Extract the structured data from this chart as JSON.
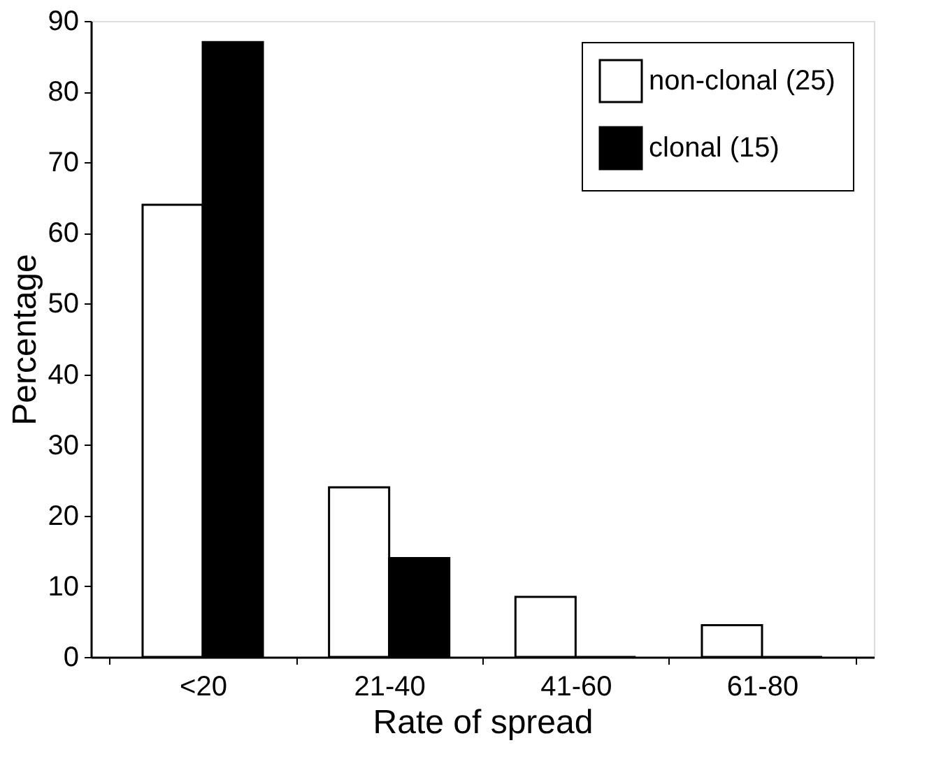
{
  "chart_data": {
    "type": "bar",
    "xlabel": "Rate of spread",
    "ylabel": "Percentage",
    "categories": [
      "<20",
      "21-40",
      "41-60",
      "61-80"
    ],
    "series": [
      {
        "name": "non-clonal (25)",
        "color": "#ffffff",
        "values": [
          64,
          24,
          8.5,
          4.5
        ]
      },
      {
        "name": "clonal (15)",
        "color": "#000000",
        "values": [
          87,
          14,
          0,
          0
        ]
      }
    ],
    "ylim": [
      0,
      90
    ],
    "yticks": [
      0,
      10,
      20,
      30,
      40,
      50,
      60,
      70,
      80,
      90
    ],
    "grid": false,
    "legend": "top right"
  }
}
